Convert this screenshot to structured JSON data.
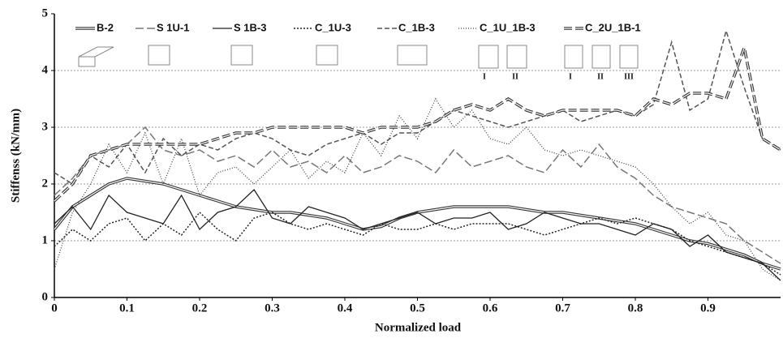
{
  "chart_data": {
    "type": "line",
    "x_label": "Normalized load",
    "y_label": "Stiffenss (kN/mm)",
    "xlim": [
      0,
      1
    ],
    "ylim": [
      0,
      5
    ],
    "xticks": [
      0,
      0.1,
      0.2,
      0.3,
      0.4,
      0.5,
      0.6,
      0.7,
      0.8,
      0.9
    ],
    "yticks": [
      0,
      1,
      2,
      3,
      4,
      5
    ],
    "grid": true,
    "annotations": [
      "I",
      "II",
      "I",
      "II",
      "III"
    ],
    "x": [
      0,
      0.025,
      0.05,
      0.075,
      0.1,
      0.125,
      0.15,
      0.175,
      0.2,
      0.225,
      0.25,
      0.275,
      0.3,
      0.325,
      0.35,
      0.375,
      0.4,
      0.425,
      0.45,
      0.475,
      0.5,
      0.525,
      0.55,
      0.575,
      0.6,
      0.625,
      0.65,
      0.675,
      0.7,
      0.725,
      0.75,
      0.775,
      0.8,
      0.825,
      0.85,
      0.875,
      0.9,
      0.925,
      0.95,
      0.975,
      1
    ],
    "series": [
      {
        "name": "B-2",
        "color": "#333333",
        "line_style": "double",
        "values": [
          1.2,
          1.6,
          1.8,
          2.0,
          2.1,
          2.05,
          2.0,
          1.9,
          1.8,
          1.7,
          1.6,
          1.55,
          1.5,
          1.5,
          1.45,
          1.4,
          1.3,
          1.2,
          1.25,
          1.4,
          1.5,
          1.55,
          1.6,
          1.6,
          1.6,
          1.6,
          1.55,
          1.5,
          1.5,
          1.45,
          1.4,
          1.35,
          1.3,
          1.2,
          1.1,
          1.0,
          0.95,
          0.85,
          0.75,
          0.6,
          0.5
        ]
      },
      {
        "name": "S 1U-1",
        "color": "#777777",
        "line_style": "longdash",
        "values": [
          1.8,
          2.1,
          2.5,
          2.6,
          2.7,
          3.0,
          2.6,
          2.5,
          2.6,
          2.4,
          2.5,
          2.3,
          2.6,
          2.3,
          2.4,
          2.2,
          2.5,
          2.2,
          2.3,
          2.5,
          2.4,
          2.2,
          2.6,
          2.3,
          2.4,
          2.5,
          2.3,
          2.2,
          2.6,
          2.3,
          2.7,
          2.3,
          2.1,
          1.8,
          1.6,
          1.5,
          1.4,
          1.3,
          1.0,
          0.8,
          0.6
        ]
      },
      {
        "name": "S 1B-3",
        "color": "#222222",
        "line_style": "solid",
        "values": [
          1.3,
          1.6,
          1.2,
          1.8,
          1.5,
          1.4,
          1.3,
          1.8,
          1.2,
          1.5,
          1.6,
          1.9,
          1.4,
          1.3,
          1.6,
          1.5,
          1.4,
          1.2,
          1.3,
          1.4,
          1.5,
          1.3,
          1.4,
          1.4,
          1.5,
          1.2,
          1.3,
          1.5,
          1.4,
          1.3,
          1.3,
          1.2,
          1.1,
          1.3,
          1.2,
          0.9,
          1.1,
          0.8,
          0.7,
          0.6,
          0.3
        ]
      },
      {
        "name": "C_1U-3",
        "color": "#222222",
        "line_style": "dotted",
        "values": [
          0.9,
          1.2,
          1.0,
          1.3,
          1.4,
          1.0,
          1.3,
          1.1,
          1.5,
          1.2,
          1.0,
          1.4,
          1.5,
          1.3,
          1.2,
          1.3,
          1.2,
          1.1,
          1.3,
          1.2,
          1.2,
          1.3,
          1.2,
          1.3,
          1.3,
          1.3,
          1.2,
          1.1,
          1.2,
          1.3,
          1.4,
          1.3,
          1.4,
          1.3,
          1.2,
          1.0,
          0.9,
          0.8,
          0.7,
          0.6,
          0.4
        ]
      },
      {
        "name": "C_1B-3",
        "color": "#555555",
        "line_style": "dashed",
        "values": [
          2.2,
          2.0,
          2.5,
          2.3,
          2.7,
          2.2,
          2.8,
          2.5,
          2.7,
          2.6,
          2.8,
          2.9,
          2.8,
          2.6,
          2.5,
          2.7,
          2.8,
          2.9,
          2.7,
          2.9,
          2.9,
          3.1,
          3.3,
          3.2,
          3.1,
          3.0,
          3.1,
          3.2,
          3.3,
          3.1,
          3.2,
          3.3,
          3.2,
          3.4,
          4.5,
          3.3,
          3.5,
          4.7,
          3.7,
          2.8,
          2.6
        ]
      },
      {
        "name": "C_1U_1B-3",
        "color": "#444444",
        "line_style": "finedot",
        "values": [
          0.5,
          1.5,
          2.0,
          2.7,
          2.2,
          2.9,
          2.0,
          2.8,
          1.8,
          2.2,
          2.3,
          2.0,
          2.3,
          2.6,
          2.1,
          2.4,
          2.2,
          2.9,
          2.5,
          3.2,
          2.8,
          3.5,
          3.0,
          3.3,
          2.8,
          2.7,
          3.0,
          2.6,
          2.5,
          2.6,
          2.5,
          2.4,
          2.3,
          2.0,
          1.6,
          1.3,
          1.5,
          1.1,
          1.0,
          0.5,
          0.3
        ]
      },
      {
        "name": "C_2U_1B-1",
        "color": "#333333",
        "line_style": "doubledash",
        "values": [
          1.7,
          2.0,
          2.5,
          2.6,
          2.7,
          2.7,
          2.7,
          2.7,
          2.7,
          2.8,
          2.9,
          2.9,
          3.0,
          3.0,
          3.0,
          3.0,
          3.0,
          2.9,
          3.0,
          3.0,
          3.0,
          3.1,
          3.3,
          3.4,
          3.3,
          3.5,
          3.3,
          3.2,
          3.3,
          3.3,
          3.3,
          3.3,
          3.2,
          3.5,
          3.4,
          3.6,
          3.6,
          3.5,
          4.4,
          2.8,
          2.6
        ]
      }
    ]
  }
}
